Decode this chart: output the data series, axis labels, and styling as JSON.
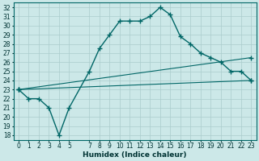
{
  "xlabel": "Humidex (Indice chaleur)",
  "bg_color": "#cce8e8",
  "grid_color": "#aacccc",
  "line_color": "#006666",
  "xlim": [
    -0.5,
    23.5
  ],
  "ylim": [
    17.5,
    32.5
  ],
  "xticks": [
    0,
    1,
    2,
    3,
    4,
    5,
    7,
    8,
    9,
    10,
    11,
    12,
    13,
    14,
    15,
    16,
    17,
    18,
    19,
    20,
    21,
    22,
    23
  ],
  "xtick_labels": [
    "0",
    "1",
    "2",
    "3",
    "4",
    "5",
    "7",
    "8",
    "9",
    "10",
    "11",
    "12",
    "13",
    "14",
    "15",
    "16",
    "17",
    "18",
    "19",
    "20",
    "21",
    "22",
    "23"
  ],
  "yticks": [
    18,
    19,
    20,
    21,
    22,
    23,
    24,
    25,
    26,
    27,
    28,
    29,
    30,
    31,
    32
  ],
  "line1_x": [
    0,
    1,
    2,
    3,
    4,
    5,
    7,
    8,
    9,
    10,
    11,
    12,
    13,
    14,
    15,
    16,
    17,
    18,
    19,
    20,
    21,
    22,
    23
  ],
  "line1_y": [
    23,
    22,
    22,
    21,
    18,
    21,
    25,
    27.5,
    29,
    30.5,
    30.5,
    30.5,
    31,
    32,
    31.2,
    28.8,
    28,
    27,
    26.5,
    26,
    25,
    25,
    24
  ],
  "line2_x": [
    0,
    23
  ],
  "line2_y": [
    23,
    26.5
  ],
  "line3_x": [
    0,
    23
  ],
  "line3_y": [
    23,
    24
  ],
  "marker": "+",
  "markersize": 4.0,
  "linewidth1": 1.0,
  "linewidth2": 0.8,
  "linewidth3": 0.8,
  "tick_fontsize": 5.5,
  "xlabel_fontsize": 6.5
}
